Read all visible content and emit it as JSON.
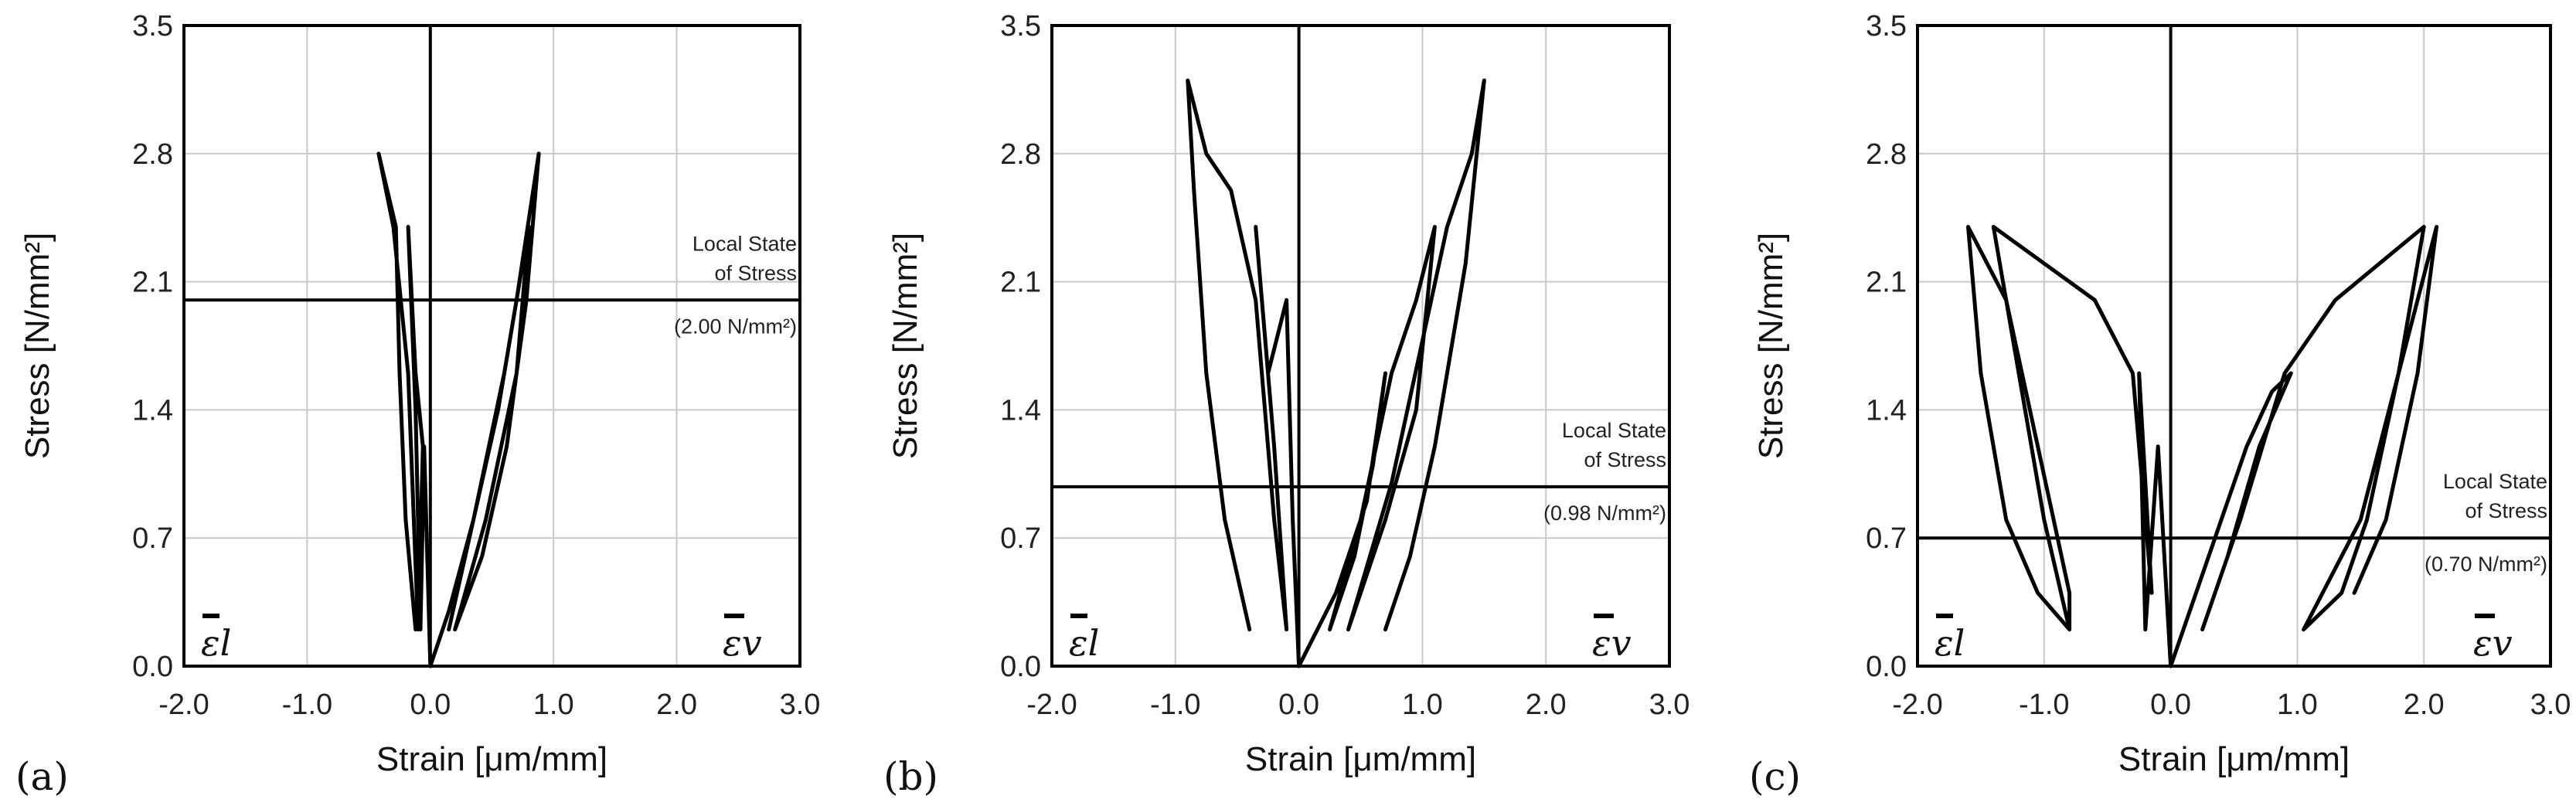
{
  "chart_data": [
    {
      "type": "line",
      "panel_label": "(a)",
      "xlabel": "Strain [μm/mm]",
      "ylabel": "Stress [N/mm²]",
      "xlim": [
        -2.0,
        3.0
      ],
      "ylim": [
        0.0,
        3.5
      ],
      "x_ticks": [
        "-2.0",
        "-1.0",
        "0.0",
        "1.0",
        "2.0",
        "3.0"
      ],
      "y_ticks": [
        "0.0",
        "0.7",
        "1.4",
        "2.1",
        "2.8",
        "3.5"
      ],
      "grid": true,
      "left_symbol": "εl",
      "right_symbol": "εv",
      "reference_line": {
        "y": 2.0,
        "label_line1": "Local State",
        "label_line2": "of Stress",
        "value_label": "(2.00 N/mm²)"
      },
      "series": [
        {
          "points": [
            [
              0,
              0
            ],
            [
              -0.05,
              1.2
            ],
            [
              -0.08,
              0.2
            ],
            [
              -0.12,
              1.4
            ],
            [
              -0.18,
              2.4
            ],
            [
              -0.12,
              1.6
            ],
            [
              -0.06,
              1.2
            ],
            [
              -0.1,
              0.2
            ],
            [
              -0.18,
              1.6
            ],
            [
              -0.3,
              2.4
            ],
            [
              -0.42,
              2.8
            ],
            [
              -0.28,
              2.4
            ],
            [
              -0.25,
              1.6
            ],
            [
              -0.2,
              0.8
            ],
            [
              -0.12,
              0.2
            ]
          ]
        },
        {
          "points": [
            [
              0,
              0
            ],
            [
              0.15,
              0.3
            ],
            [
              0.35,
              0.8
            ],
            [
              0.55,
              1.4
            ],
            [
              0.7,
              2.0
            ],
            [
              0.88,
              2.8
            ],
            [
              0.78,
              2.0
            ],
            [
              0.62,
              1.2
            ],
            [
              0.42,
              0.6
            ],
            [
              0.2,
              0.2
            ],
            [
              0.45,
              0.8
            ],
            [
              0.7,
              1.6
            ],
            [
              0.8,
              2.4
            ],
            [
              0.6,
              1.6
            ],
            [
              0.35,
              0.8
            ],
            [
              0.15,
              0.2
            ]
          ]
        }
      ]
    },
    {
      "type": "line",
      "panel_label": "(b)",
      "xlabel": "Strain [μm/mm]",
      "ylabel": "Stress [N/mm²]",
      "xlim": [
        -2.0,
        3.0
      ],
      "ylim": [
        0.0,
        3.5
      ],
      "x_ticks": [
        "-2.0",
        "-1.0",
        "0.0",
        "1.0",
        "2.0",
        "3.0"
      ],
      "y_ticks": [
        "0.0",
        "0.7",
        "1.4",
        "2.1",
        "2.8",
        "3.5"
      ],
      "grid": true,
      "left_symbol": "εl",
      "right_symbol": "εv",
      "reference_line": {
        "y": 0.98,
        "label_line1": "Local State",
        "label_line2": "of Stress",
        "value_label": "(0.98 N/mm²)"
      },
      "series": [
        {
          "points": [
            [
              0,
              0
            ],
            [
              -0.05,
              0.8
            ],
            [
              -0.1,
              2.0
            ],
            [
              -0.25,
              1.6
            ],
            [
              -0.35,
              2.4
            ],
            [
              -0.2,
              1.2
            ],
            [
              -0.1,
              0.2
            ],
            [
              -0.2,
              0.8
            ],
            [
              -0.35,
              2.0
            ],
            [
              -0.55,
              2.6
            ],
            [
              -0.75,
              2.8
            ],
            [
              -0.9,
              3.2
            ],
            [
              -0.85,
              2.6
            ],
            [
              -0.75,
              1.6
            ],
            [
              -0.6,
              0.8
            ],
            [
              -0.4,
              0.2
            ]
          ]
        },
        {
          "points": [
            [
              0,
              0
            ],
            [
              0.3,
              0.4
            ],
            [
              0.55,
              0.9
            ],
            [
              0.7,
              1.6
            ],
            [
              0.6,
              1.1
            ],
            [
              0.45,
              0.6
            ],
            [
              0.25,
              0.2
            ],
            [
              0.5,
              0.8
            ],
            [
              0.75,
              1.6
            ],
            [
              0.95,
              2.0
            ],
            [
              1.1,
              2.4
            ],
            [
              0.95,
              1.4
            ],
            [
              0.7,
              0.8
            ],
            [
              0.4,
              0.2
            ],
            [
              0.75,
              1.0
            ],
            [
              1.2,
              2.4
            ],
            [
              1.4,
              2.8
            ],
            [
              1.5,
              3.2
            ],
            [
              1.35,
              2.2
            ],
            [
              1.1,
              1.2
            ],
            [
              0.9,
              0.6
            ],
            [
              0.7,
              0.2
            ]
          ]
        }
      ]
    },
    {
      "type": "line",
      "panel_label": "(c)",
      "xlabel": "Strain [μm/mm]",
      "ylabel": "Stress [N/mm²]",
      "xlim": [
        -2.0,
        3.0
      ],
      "ylim": [
        0.0,
        3.5
      ],
      "x_ticks": [
        "-2.0",
        "-1.0",
        "0.0",
        "1.0",
        "2.0",
        "3.0"
      ],
      "y_ticks": [
        "0.0",
        "0.7",
        "1.4",
        "2.1",
        "2.8",
        "3.5"
      ],
      "grid": true,
      "left_symbol": "εl",
      "right_symbol": "εv",
      "reference_line": {
        "y": 0.7,
        "label_line1": "Local State",
        "label_line2": "of Stress",
        "value_label": "(0.70 N/mm²)"
      },
      "series": [
        {
          "points": [
            [
              0,
              0
            ],
            [
              -0.1,
              1.2
            ],
            [
              -0.2,
              0.2
            ],
            [
              -0.25,
              1.6
            ],
            [
              -0.15,
              0.4
            ],
            [
              -0.3,
              1.6
            ],
            [
              -0.6,
              2.0
            ],
            [
              -1.4,
              2.4
            ],
            [
              -1.2,
              1.6
            ],
            [
              -1.0,
              0.8
            ],
            [
              -0.8,
              0.2
            ],
            [
              -0.8,
              0.4
            ],
            [
              -1.3,
              2.0
            ],
            [
              -1.6,
              2.4
            ],
            [
              -1.5,
              1.6
            ],
            [
              -1.3,
              0.8
            ],
            [
              -1.05,
              0.4
            ],
            [
              -0.8,
              0.2
            ]
          ]
        },
        {
          "points": [
            [
              0,
              0
            ],
            [
              0.2,
              0.4
            ],
            [
              0.4,
              0.8
            ],
            [
              0.6,
              1.2
            ],
            [
              0.8,
              1.5
            ],
            [
              0.95,
              1.6
            ],
            [
              0.7,
              1.2
            ],
            [
              0.45,
              0.6
            ],
            [
              0.25,
              0.2
            ],
            [
              0.55,
              0.8
            ],
            [
              0.9,
              1.6
            ],
            [
              1.3,
              2.0
            ],
            [
              2.0,
              2.4
            ],
            [
              1.8,
              1.6
            ],
            [
              1.55,
              0.8
            ],
            [
              1.35,
              0.4
            ],
            [
              1.05,
              0.2
            ],
            [
              1.5,
              0.8
            ],
            [
              2.1,
              2.4
            ],
            [
              1.95,
              1.6
            ],
            [
              1.7,
              0.8
            ],
            [
              1.45,
              0.4
            ]
          ]
        }
      ]
    }
  ]
}
